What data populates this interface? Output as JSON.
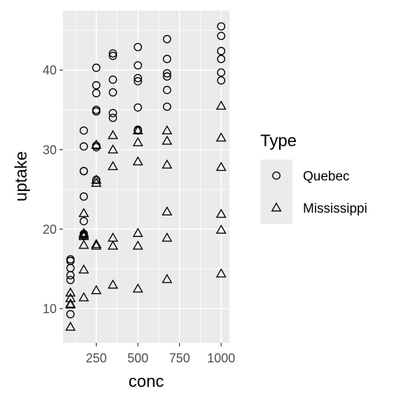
{
  "chart_data": {
    "type": "scatter",
    "title": "",
    "xlabel": "conc",
    "ylabel": "uptake",
    "xlim": [
      50,
      1050
    ],
    "ylim": [
      5.7,
      47.5
    ],
    "x_ticks": [
      250,
      500,
      750,
      1000
    ],
    "y_ticks": [
      10,
      20,
      30,
      40
    ],
    "x_tick_labels": [
      "250",
      "500",
      "750",
      "1000"
    ],
    "y_tick_labels": [
      "10",
      "20",
      "30",
      "40"
    ],
    "grid": true,
    "legend": {
      "title": "Type",
      "position": "right",
      "entries": [
        {
          "label": "Quebec",
          "shape": "circle"
        },
        {
          "label": "Mississippi",
          "shape": "triangle"
        }
      ]
    },
    "series": [
      {
        "name": "Quebec",
        "shape": "circle",
        "points": [
          [
            95,
            16.2
          ],
          [
            95,
            16.0
          ],
          [
            95,
            15.1
          ],
          [
            95,
            14.2
          ],
          [
            95,
            13.6
          ],
          [
            95,
            9.3
          ],
          [
            175,
            32.4
          ],
          [
            175,
            30.4
          ],
          [
            175,
            27.3
          ],
          [
            175,
            27.3
          ],
          [
            175,
            24.1
          ],
          [
            175,
            21.0
          ],
          [
            175,
            19.4
          ],
          [
            175,
            19.2
          ],
          [
            250,
            40.3
          ],
          [
            250,
            38.1
          ],
          [
            250,
            37.1
          ],
          [
            250,
            35.0
          ],
          [
            250,
            34.8
          ],
          [
            250,
            30.5
          ],
          [
            250,
            30.3
          ],
          [
            250,
            26.2
          ],
          [
            350,
            42.1
          ],
          [
            350,
            41.8
          ],
          [
            350,
            38.8
          ],
          [
            350,
            37.2
          ],
          [
            350,
            34.6
          ],
          [
            350,
            34.0
          ],
          [
            500,
            42.9
          ],
          [
            500,
            40.6
          ],
          [
            500,
            39.0
          ],
          [
            500,
            38.6
          ],
          [
            500,
            35.3
          ],
          [
            500,
            32.5
          ],
          [
            500,
            32.4
          ],
          [
            675,
            43.9
          ],
          [
            675,
            41.4
          ],
          [
            675,
            39.6
          ],
          [
            675,
            39.2
          ],
          [
            675,
            37.5
          ],
          [
            675,
            35.4
          ],
          [
            1000,
            45.5
          ],
          [
            1000,
            44.3
          ],
          [
            1000,
            42.4
          ],
          [
            1000,
            41.4
          ],
          [
            1000,
            39.7
          ],
          [
            1000,
            38.7
          ]
        ]
      },
      {
        "name": "Mississippi",
        "shape": "triangle",
        "points": [
          [
            95,
            12.0
          ],
          [
            95,
            11.3
          ],
          [
            95,
            10.6
          ],
          [
            95,
            10.5
          ],
          [
            95,
            7.7
          ],
          [
            175,
            22.0
          ],
          [
            175,
            19.5
          ],
          [
            175,
            19.3
          ],
          [
            175,
            19.1
          ],
          [
            175,
            18.0
          ],
          [
            175,
            14.9
          ],
          [
            175,
            11.4
          ],
          [
            250,
            30.6
          ],
          [
            250,
            26.2
          ],
          [
            250,
            25.8
          ],
          [
            250,
            18.1
          ],
          [
            250,
            17.9
          ],
          [
            250,
            12.3
          ],
          [
            350,
            31.8
          ],
          [
            350,
            30.0
          ],
          [
            350,
            27.9
          ],
          [
            350,
            18.9
          ],
          [
            350,
            17.9
          ],
          [
            350,
            13.0
          ],
          [
            500,
            32.4
          ],
          [
            500,
            30.9
          ],
          [
            500,
            28.5
          ],
          [
            500,
            19.5
          ],
          [
            500,
            17.9
          ],
          [
            500,
            12.5
          ],
          [
            675,
            32.4
          ],
          [
            675,
            31.1
          ],
          [
            675,
            28.1
          ],
          [
            675,
            22.2
          ],
          [
            675,
            18.9
          ],
          [
            675,
            13.7
          ],
          [
            1000,
            35.5
          ],
          [
            1000,
            31.5
          ],
          [
            1000,
            27.8
          ],
          [
            1000,
            21.9
          ],
          [
            1000,
            19.9
          ],
          [
            1000,
            14.4
          ]
        ]
      }
    ]
  }
}
